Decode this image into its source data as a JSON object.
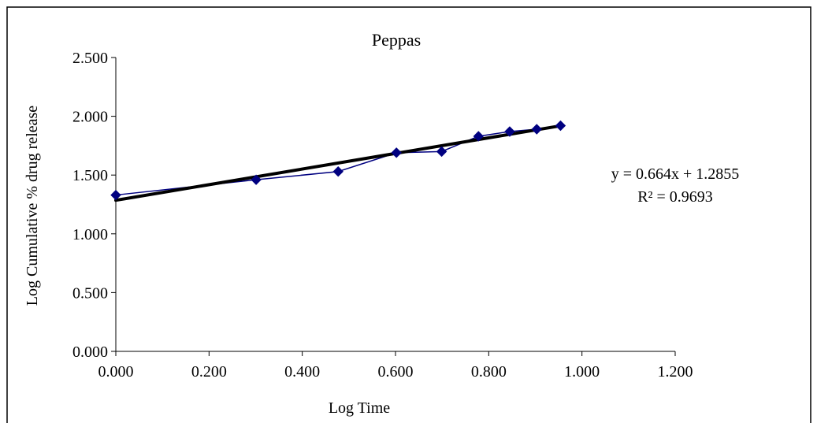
{
  "chart_data": {
    "type": "scatter",
    "title": "Peppas",
    "xlabel": "Log Time",
    "ylabel": "Log Cumulative % drug release",
    "xlim": [
      0,
      1.2
    ],
    "ylim": [
      0,
      2.5
    ],
    "x_ticks": [
      "0.000",
      "0.200",
      "0.400",
      "0.600",
      "0.800",
      "1.000",
      "1.200"
    ],
    "y_ticks": [
      "0.000",
      "0.500",
      "1.000",
      "1.500",
      "2.000",
      "2.500"
    ],
    "grid": false,
    "series": [
      {
        "points": [
          [
            0.0,
            1.33
          ],
          [
            0.301,
            1.46
          ],
          [
            0.477,
            1.53
          ],
          [
            0.602,
            1.69
          ],
          [
            0.699,
            1.7
          ],
          [
            0.778,
            1.83
          ],
          [
            0.845,
            1.87
          ],
          [
            0.903,
            1.89
          ],
          [
            0.954,
            1.92
          ]
        ],
        "color": "#000080",
        "marker": "diamond"
      }
    ],
    "trendline": {
      "slope": 0.664,
      "intercept": 1.2855,
      "x_range": [
        0,
        0.954
      ],
      "color": "#000000"
    },
    "annotations": {
      "equation": "y = 0.664x + 1.2855",
      "r_squared": "R² = 0.9693"
    }
  }
}
